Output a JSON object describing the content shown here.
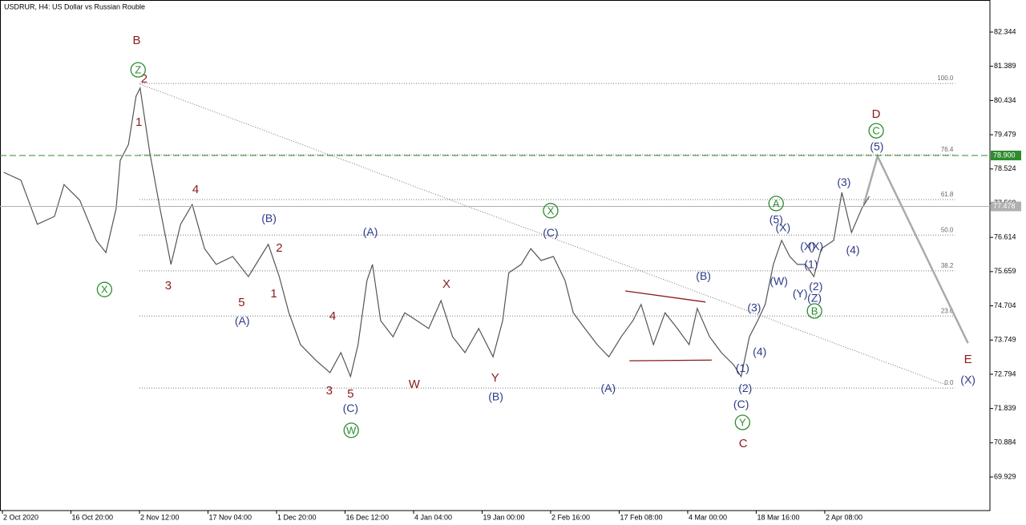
{
  "chart_data": {
    "type": "line",
    "title": "USDRUR, H4:  US Dollar vs Russian Rouble",
    "xlim": [
      -0.035,
      14.41
    ],
    "xticks": [
      {
        "value": 0,
        "label": "2 Oct 2020"
      },
      {
        "value": 1,
        "label": "16 Oct 20:00"
      },
      {
        "value": 2,
        "label": "2 Nov 12:00"
      },
      {
        "value": 3,
        "label": "17 Nov 04:00"
      },
      {
        "value": 4,
        "label": "1 Dec 20:00"
      },
      {
        "value": 5,
        "label": "16 Dec 12:00"
      },
      {
        "value": 6,
        "label": "4 Jan 04:00"
      },
      {
        "value": 7,
        "label": "19 Jan 00:00"
      },
      {
        "value": 8,
        "label": "2 Feb 16:00"
      },
      {
        "value": 9,
        "label": "17 Feb 08:00"
      },
      {
        "value": 10,
        "label": "4 Mar 00:00"
      },
      {
        "value": 11,
        "label": "18 Mar 16:00"
      },
      {
        "value": 12,
        "label": "2 Apr 08:00"
      }
    ],
    "ylim": [
      68.99,
      83.239
    ],
    "yticks": [
      82.344,
      81.389,
      80.434,
      79.479,
      78.524,
      77.569,
      76.614,
      75.659,
      74.704,
      73.749,
      72.794,
      71.839,
      70.884,
      69.929
    ],
    "series": [
      {
        "name": "USDRUR",
        "color": "#555555",
        "x": [
          0.02,
          0.27,
          0.51,
          0.76,
          0.9,
          1.13,
          1.37,
          1.51,
          1.66,
          1.72,
          1.84,
          1.95,
          2.01,
          2.15,
          2.3,
          2.46,
          2.6,
          2.77,
          2.95,
          3.12,
          3.36,
          3.59,
          3.77,
          3.88,
          4.04,
          4.18,
          4.35,
          4.58,
          4.78,
          4.94,
          5.08,
          5.19,
          5.32,
          5.4,
          5.52,
          5.7,
          5.87,
          6.05,
          6.22,
          6.4,
          6.57,
          6.75,
          6.95,
          7.16,
          7.3,
          7.39,
          7.57,
          7.71,
          7.86,
          8.04,
          8.21,
          8.33,
          8.5,
          8.68,
          8.85,
          9.03,
          9.2,
          9.32,
          9.5,
          9.67,
          9.85,
          10.02,
          10.14,
          10.32,
          10.49,
          10.67,
          10.78,
          10.9,
          11.02,
          11.13,
          11.25,
          11.37,
          11.49,
          11.6,
          11.72,
          11.84,
          11.95,
          12.13,
          12.25,
          12.39,
          12.54,
          12.65
        ],
        "values": [
          78.43,
          78.21,
          76.98,
          77.2,
          78.09,
          77.65,
          76.53,
          76.19,
          77.42,
          78.76,
          79.21,
          80.55,
          80.78,
          78.99,
          77.42,
          75.86,
          76.98,
          77.53,
          76.3,
          75.86,
          76.08,
          75.52,
          76.08,
          76.42,
          75.52,
          74.51,
          73.62,
          73.17,
          72.84,
          73.4,
          72.73,
          73.62,
          75.41,
          75.86,
          74.29,
          73.84,
          74.51,
          74.29,
          74.07,
          74.85,
          73.84,
          73.4,
          74.07,
          73.28,
          74.29,
          75.63,
          75.86,
          76.3,
          75.97,
          76.08,
          75.41,
          74.51,
          74.07,
          73.62,
          73.28,
          73.84,
          74.29,
          74.74,
          73.62,
          74.51,
          74.07,
          73.62,
          74.63,
          73.84,
          73.4,
          73.06,
          72.73,
          73.84,
          74.29,
          74.74,
          75.86,
          76.53,
          76.08,
          75.86,
          75.86,
          75.52,
          76.3,
          76.53,
          77.87,
          76.75,
          77.42,
          77.76
        ]
      }
    ],
    "level_lines": [
      {
        "value": 78.9,
        "label": "78.900",
        "color": "#2e8b2e"
      },
      {
        "value": 77.478,
        "label": "77.478",
        "color": "#b0b0b0"
      }
    ],
    "fib_levels": [
      {
        "label": "100.0",
        "price": 80.91
      },
      {
        "label": "76.4",
        "price": 78.92
      },
      {
        "label": "61.8",
        "price": 77.67
      },
      {
        "label": "50.0",
        "price": 76.68
      },
      {
        "label": "38.2",
        "price": 75.68
      },
      {
        "label": "23.6",
        "price": 74.42
      },
      {
        "label": "0.0",
        "price": 72.41
      }
    ],
    "fib_x": [
      2.0,
      13.9
    ],
    "drawings": [
      {
        "color": "#555555",
        "dotted": true,
        "x": [
          2.01,
          13.77
        ],
        "y": [
          80.89,
          72.5
        ]
      },
      {
        "color": "#8b1a1a",
        "dotted": false,
        "x": [
          9.09,
          10.26
        ],
        "y": [
          75.12,
          74.81
        ]
      },
      {
        "color": "#8b1a1a",
        "dotted": false,
        "x": [
          9.15,
          10.35
        ],
        "y": [
          73.17,
          73.19
        ]
      },
      {
        "color": "#aaaaaa",
        "dotted": false,
        "x": [
          12.57,
          12.77,
          14.09
        ],
        "y": [
          77.53,
          78.88,
          73.66
        ]
      }
    ],
    "wave_labels": [
      {
        "color": "#8b1a1a",
        "circled": false,
        "labels": [
          {
            "text": "B",
            "x": 1.96,
            "y": 82.12
          },
          {
            "text": "2",
            "x": 2.07,
            "y": 81.05
          },
          {
            "text": "1",
            "x": 1.99,
            "y": 79.84
          },
          {
            "text": "4",
            "x": 2.82,
            "y": 77.96
          },
          {
            "text": "3",
            "x": 2.42,
            "y": 75.27
          },
          {
            "text": "5",
            "x": 3.49,
            "y": 74.81
          },
          {
            "text": "2",
            "x": 4.04,
            "y": 76.33
          },
          {
            "text": "1",
            "x": 3.96,
            "y": 75.05
          },
          {
            "text": "4",
            "x": 4.82,
            "y": 74.42
          },
          {
            "text": "3",
            "x": 4.77,
            "y": 72.34
          },
          {
            "text": "5",
            "x": 5.08,
            "y": 72.25
          },
          {
            "text": "X",
            "x": 6.48,
            "y": 75.32
          },
          {
            "text": "W",
            "x": 6.01,
            "y": 72.52
          },
          {
            "text": "Y",
            "x": 7.19,
            "y": 72.7
          },
          {
            "text": "D",
            "x": 12.75,
            "y": 80.06
          },
          {
            "text": "C",
            "x": 10.81,
            "y": 70.87
          },
          {
            "text": "E",
            "x": 14.09,
            "y": 73.22
          }
        ]
      },
      {
        "color": "#2e3a87",
        "circled": false,
        "labels": [
          {
            "text": "(B)",
            "x": 3.89,
            "y": 77.15
          },
          {
            "text": "(A)",
            "x": 3.5,
            "y": 74.29
          },
          {
            "text": "(A)",
            "x": 5.37,
            "y": 76.77
          },
          {
            "text": "(C)",
            "x": 5.08,
            "y": 71.85
          },
          {
            "text": "(B)",
            "x": 7.2,
            "y": 72.17
          },
          {
            "text": "(C)",
            "x": 8.0,
            "y": 76.75
          },
          {
            "text": "(A)",
            "x": 8.84,
            "y": 72.41
          },
          {
            "text": "(B)",
            "x": 10.23,
            "y": 75.54
          },
          {
            "text": "(3)",
            "x": 10.97,
            "y": 74.65
          },
          {
            "text": "(4)",
            "x": 11.05,
            "y": 73.42
          },
          {
            "text": "(1)",
            "x": 10.8,
            "y": 72.97
          },
          {
            "text": "(2)",
            "x": 10.84,
            "y": 72.41
          },
          {
            "text": "(C)",
            "x": 10.78,
            "y": 71.96
          },
          {
            "text": "(5)",
            "x": 11.29,
            "y": 77.11
          },
          {
            "text": "(X)",
            "x": 11.39,
            "y": 76.89
          },
          {
            "text": "(W)",
            "x": 11.33,
            "y": 75.39
          },
          {
            "text": "(X)",
            "x": 11.75,
            "y": 76.37
          },
          {
            "text": "(X)",
            "x": 11.87,
            "y": 76.37
          },
          {
            "text": "(1)",
            "x": 11.8,
            "y": 75.86
          },
          {
            "text": "(Y)",
            "x": 11.64,
            "y": 75.05
          },
          {
            "text": "(2)",
            "x": 11.87,
            "y": 75.25
          },
          {
            "text": "(Z)",
            "x": 11.85,
            "y": 74.92
          },
          {
            "text": "(3)",
            "x": 12.28,
            "y": 78.16
          },
          {
            "text": "(4)",
            "x": 12.41,
            "y": 76.26
          },
          {
            "text": "(5)",
            "x": 12.76,
            "y": 79.15
          },
          {
            "text": "(X)",
            "x": 14.09,
            "y": 72.64
          }
        ]
      },
      {
        "color": "#2e8b2e",
        "circled": true,
        "labels": [
          {
            "text": "Z",
            "x": 1.98,
            "y": 81.29
          },
          {
            "text": "X",
            "x": 1.49,
            "y": 75.16
          },
          {
            "text": "W",
            "x": 5.09,
            "y": 71.23
          },
          {
            "text": "X",
            "x": 8.0,
            "y": 77.36
          },
          {
            "text": "Y",
            "x": 10.8,
            "y": 71.45
          },
          {
            "text": "A",
            "x": 11.29,
            "y": 77.56
          },
          {
            "text": "B",
            "x": 11.85,
            "y": 74.56
          },
          {
            "text": "C",
            "x": 12.75,
            "y": 79.59
          }
        ]
      }
    ]
  }
}
